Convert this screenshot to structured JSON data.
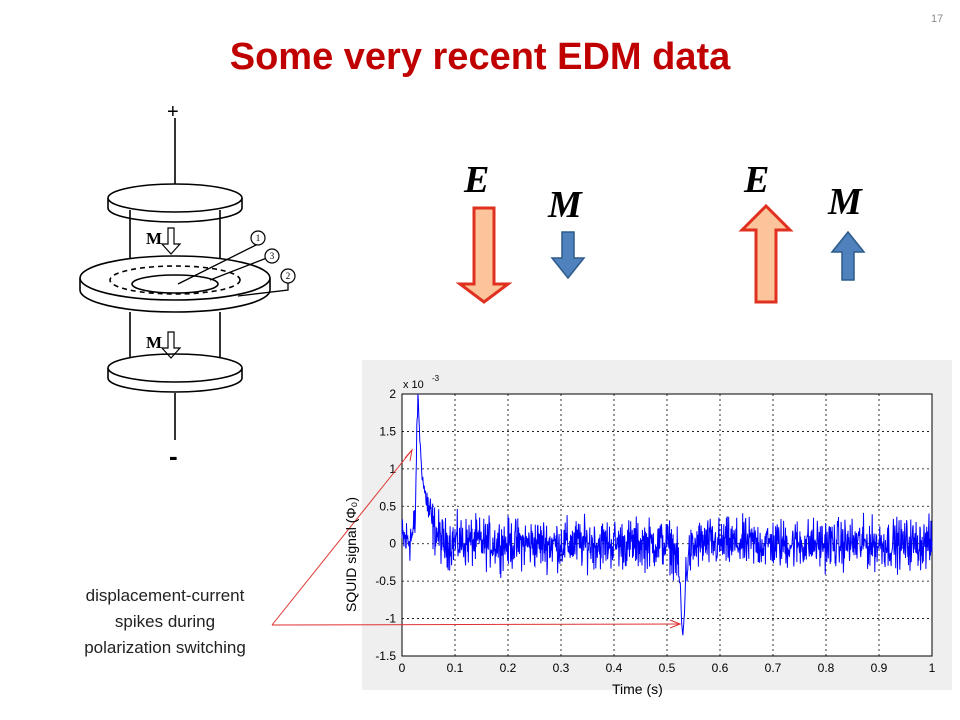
{
  "slide": {
    "number": "17",
    "title": "Some very recent EDM data"
  },
  "apparatus": {
    "plus_label": "+",
    "minus_label": "-",
    "m_label": "M",
    "probe_labels": [
      "1",
      "3",
      "2"
    ]
  },
  "field_state_left": {
    "e_label": "E",
    "m_label": "M",
    "e_direction": "down",
    "m_direction": "down"
  },
  "field_state_right": {
    "e_label": "E",
    "m_label": "M",
    "e_direction": "up",
    "m_direction": "up"
  },
  "annotation": {
    "lines": [
      "displacement-current",
      "spikes during",
      "polarization switching"
    ]
  },
  "colors": {
    "title": "#c00000",
    "e_arrow_fill": "#fbc49a",
    "e_arrow_stroke": "#e03020",
    "m_arrow_fill": "#4f81bd",
    "m_arrow_stroke": "#2f5a8c",
    "signal": "#0000ff",
    "annotation_lines": "#e03030"
  },
  "chart_data": {
    "type": "line",
    "xlabel": "Time (s)",
    "ylabel": "SQUID signal (Φ₀)",
    "exponent_label": "x 10",
    "exponent_power": "-3",
    "xlim": [
      0,
      1
    ],
    "ylim": [
      -1.5,
      2
    ],
    "xticks": [
      "0",
      "0.1",
      "0.2",
      "0.3",
      "0.4",
      "0.5",
      "0.6",
      "0.7",
      "0.8",
      "0.9",
      "1"
    ],
    "yticks": [
      "2",
      "1.5",
      "1",
      "0.5",
      "0",
      "-0.5",
      "-1",
      "-1.5"
    ],
    "grid": true,
    "series": [
      {
        "noise_amplitude": 0.25,
        "x": [
          0,
          0.01,
          0.02,
          0.025,
          0.028,
          0.03,
          0.032,
          0.035,
          0.04,
          0.05,
          0.06,
          0.08,
          0.1,
          0.2,
          0.3,
          0.4,
          0.5,
          0.51,
          0.52,
          0.525,
          0.528,
          0.53,
          0.532,
          0.535,
          0.54,
          0.56,
          0.6,
          0.7,
          0.8,
          0.9,
          1.0
        ],
        "y": [
          0.05,
          0.05,
          0.1,
          0.3,
          1.5,
          1.95,
          1.7,
          1.2,
          0.8,
          0.45,
          0.2,
          0.0,
          0.03,
          0.0,
          0.0,
          0.0,
          0.0,
          -0.05,
          -0.2,
          -0.6,
          -1.1,
          -1.25,
          -1.0,
          -0.5,
          -0.15,
          0.0,
          0.0,
          0.0,
          0.0,
          0.0,
          0.0
        ]
      }
    ]
  }
}
